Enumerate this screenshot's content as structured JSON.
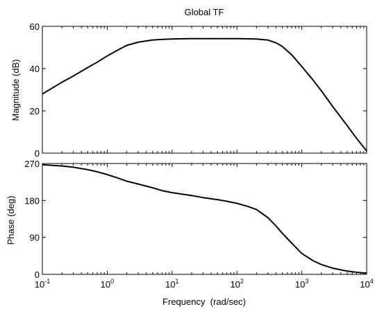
{
  "chart_data": [
    {
      "type": "line",
      "title": "Global TF",
      "xlabel": "",
      "ylabel": "Magnitude (dB)",
      "x_scale": "log",
      "xlim": [
        0.1,
        10000
      ],
      "ylim": [
        0,
        60
      ],
      "yticks": [
        0,
        20,
        40,
        60
      ],
      "x_tick_labels": [],
      "grid": false,
      "series": [
        {
          "x": [
            0.1,
            0.2,
            0.3,
            0.5,
            0.7,
            1,
            1.5,
            2,
            3,
            5,
            7,
            10,
            20,
            50,
            100,
            200,
            300,
            400,
            500,
            700,
            1000,
            1500,
            2000,
            3000,
            5000,
            7000,
            10000
          ],
          "y": [
            28,
            33.5,
            36.5,
            40.5,
            43,
            46,
            49,
            51,
            52.5,
            53.5,
            53.8,
            54,
            54.2,
            54.2,
            54.2,
            54,
            53.5,
            52.2,
            50.5,
            46.5,
            41,
            34.5,
            29.5,
            22,
            13,
            7,
            1
          ]
        }
      ]
    },
    {
      "type": "line",
      "title": "",
      "xlabel": "Frequency  (rad/sec)",
      "ylabel": "Phase (deg)",
      "x_scale": "log",
      "xlim": [
        0.1,
        10000
      ],
      "ylim": [
        0,
        270
      ],
      "yticks": [
        0,
        90,
        180,
        270
      ],
      "x_tick_labels": [
        {
          "base": "10",
          "exp": "-1"
        },
        {
          "base": "10",
          "exp": "0"
        },
        {
          "base": "10",
          "exp": "1"
        },
        {
          "base": "10",
          "exp": "2"
        },
        {
          "base": "10",
          "exp": "3"
        },
        {
          "base": "10",
          "exp": "4"
        }
      ],
      "grid": false,
      "series": [
        {
          "x": [
            0.1,
            0.2,
            0.3,
            0.5,
            0.7,
            1,
            1.5,
            2,
            3,
            5,
            7,
            10,
            20,
            30,
            50,
            70,
            100,
            150,
            200,
            300,
            400,
            500,
            700,
            1000,
            1500,
            2000,
            3000,
            5000,
            7000,
            10000
          ],
          "y": [
            267,
            264,
            261,
            255,
            250,
            243,
            234,
            227,
            220,
            211,
            204,
            199,
            192,
            187,
            182,
            178,
            173,
            165,
            158,
            138,
            118,
            100,
            76,
            51,
            33,
            24,
            15,
            8,
            5,
            3
          ]
        }
      ]
    }
  ]
}
